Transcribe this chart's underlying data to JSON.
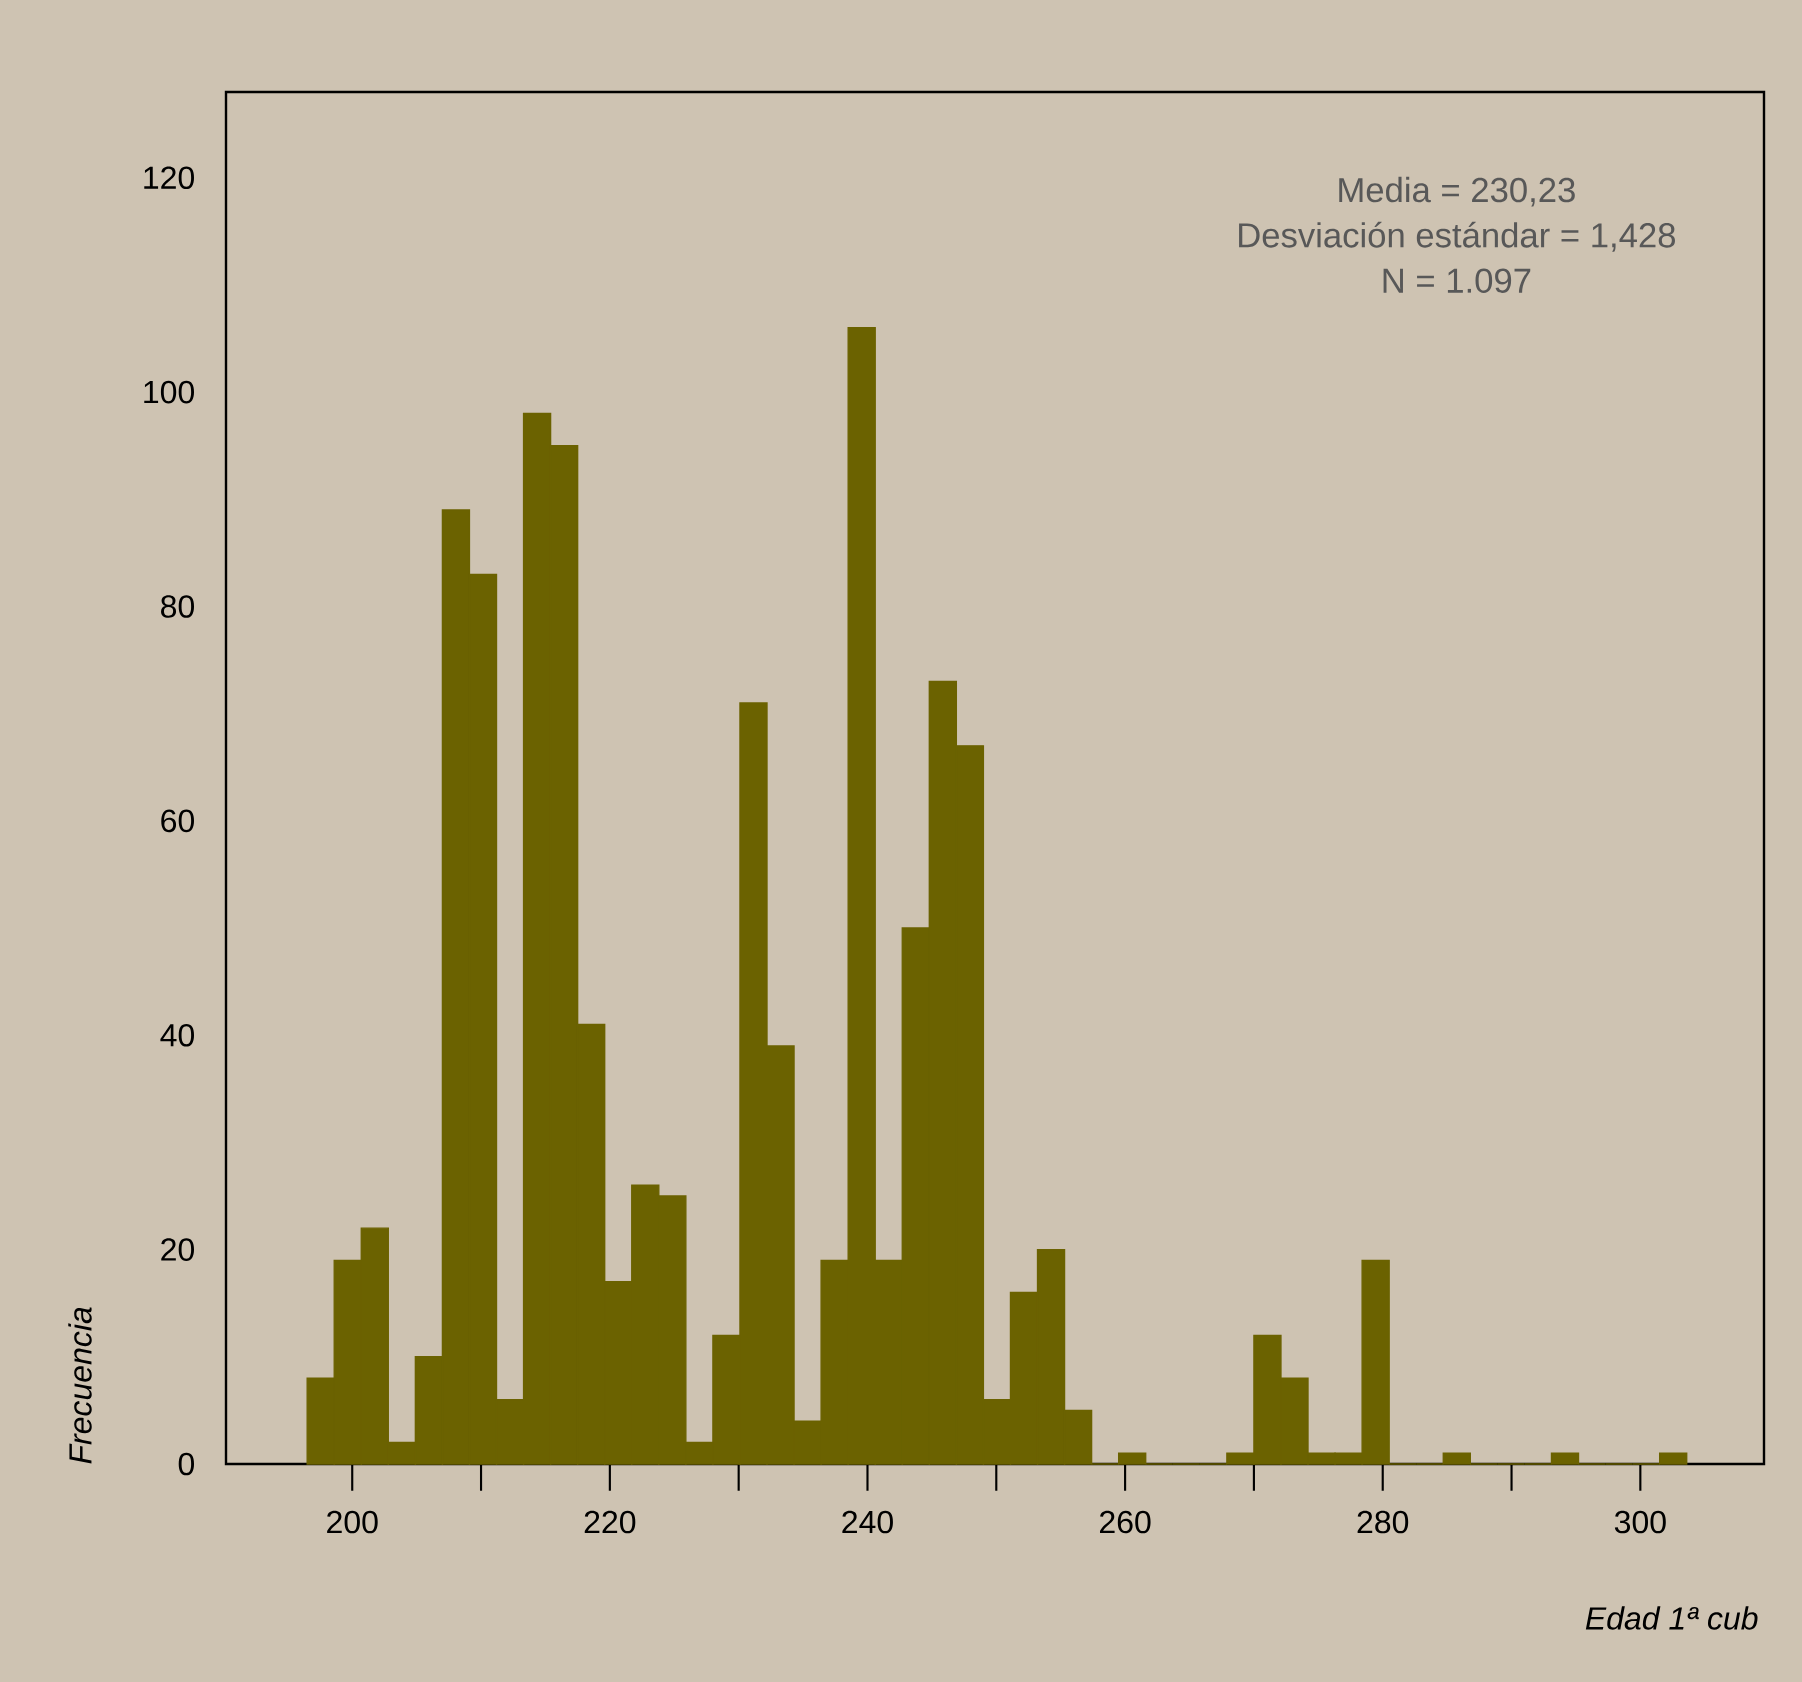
{
  "chart_data": {
    "type": "histogram",
    "bins": [
      196.5,
      198.6,
      200.7,
      202.8,
      204.9,
      207.0,
      209.1,
      211.2,
      213.3,
      215.4,
      217.5,
      219.6,
      221.7,
      223.8,
      225.9,
      228.0,
      230.1,
      232.2,
      234.3,
      236.4,
      238.5,
      240.6,
      242.7,
      244.8,
      246.9,
      249.0,
      251.1,
      253.2,
      255.3,
      257.4,
      259.5,
      261.6,
      263.7,
      265.8,
      267.9,
      270.0,
      272.1,
      274.2,
      276.3,
      278.4,
      280.5,
      282.6,
      284.7,
      286.8,
      288.9,
      291.0,
      293.1,
      295.2,
      297.3,
      299.4,
      301.5,
      303.6
    ],
    "values": [
      8,
      19,
      22,
      2,
      10,
      89,
      83,
      6,
      98,
      95,
      41,
      17,
      26,
      25,
      2,
      12,
      71,
      39,
      4,
      19,
      106,
      19,
      50,
      73,
      67,
      6,
      16,
      20,
      5,
      0,
      1,
      0,
      0,
      0,
      1,
      12,
      8,
      1,
      1,
      19,
      0,
      0,
      1,
      0,
      0,
      0,
      1,
      0,
      0,
      0,
      1
    ],
    "color": "#6b6200",
    "xlim": [
      190.2,
      309.6
    ],
    "ylim": [
      0,
      128
    ],
    "xticks": [
      200,
      {
        "value": 210,
        "label": null
      },
      220,
      {
        "value": 230,
        "label": null
      },
      240,
      {
        "value": 250,
        "label": null
      },
      260,
      {
        "value": 270,
        "label": null
      },
      280,
      {
        "value": 290,
        "label": null
      },
      300
    ],
    "yticks": [
      0,
      20,
      40,
      60,
      80,
      100,
      120
    ],
    "xlabel": "Edad 1ª cub",
    "ylabel": "Frecuencia",
    "annotations": [
      "Media = 230,23",
      "Desviación estándar = 1,428",
      "N = 1.097"
    ]
  }
}
